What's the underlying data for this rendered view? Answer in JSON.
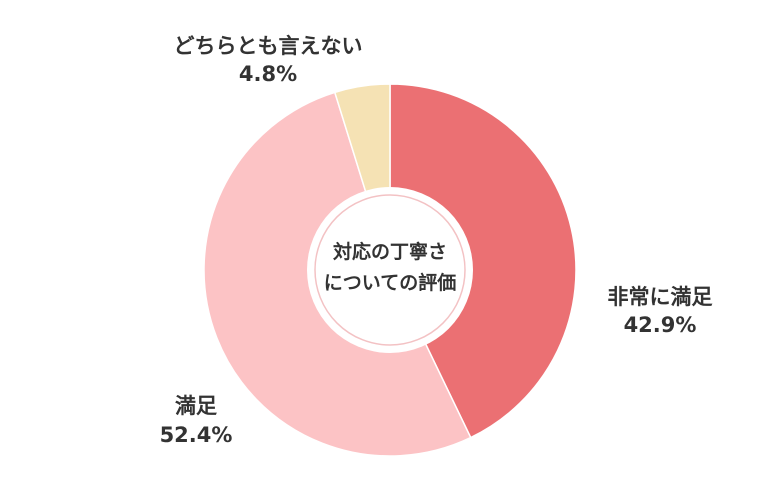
{
  "chart_data": {
    "type": "pie",
    "center_label": [
      "対応の丁寧さ",
      "についての評価"
    ],
    "slices": [
      {
        "label": "非常に満足",
        "value": 42.9,
        "value_text": "42.9%",
        "color": "#eb7073"
      },
      {
        "label": "満足",
        "value": 52.4,
        "value_text": "52.4%",
        "color": "#fcc3c5"
      },
      {
        "label": "どちらとも言えない",
        "value": 4.8,
        "value_text": "4.8%",
        "color": "#f5e2b4"
      }
    ]
  }
}
